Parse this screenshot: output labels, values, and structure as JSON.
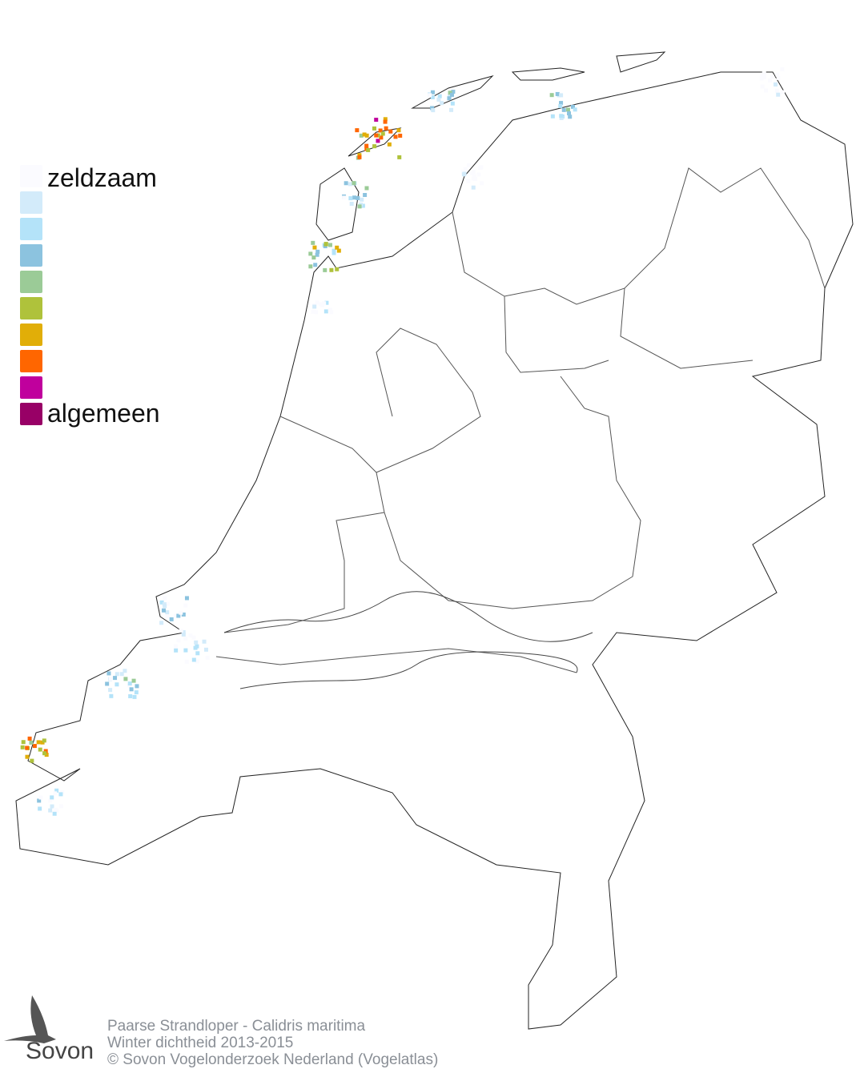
{
  "legend": {
    "top_label": "zeldzaam",
    "bottom_label": "algemeen",
    "colors": [
      "#fbfbff",
      "#d3ebfa",
      "#b4e3f9",
      "#8cc3df",
      "#9bcb97",
      "#afc23b",
      "#e1ae08",
      "#ff6600",
      "#c0009d",
      "#980066"
    ]
  },
  "footer": {
    "line1": "Paarse Strandloper - Calidris maritima",
    "line2": "Winter dichtheid 2013-2015",
    "line3": "© Sovon Vogelonderzoek Nederland (Vogelatlas)"
  },
  "logo": {
    "text": "Sovon"
  }
}
